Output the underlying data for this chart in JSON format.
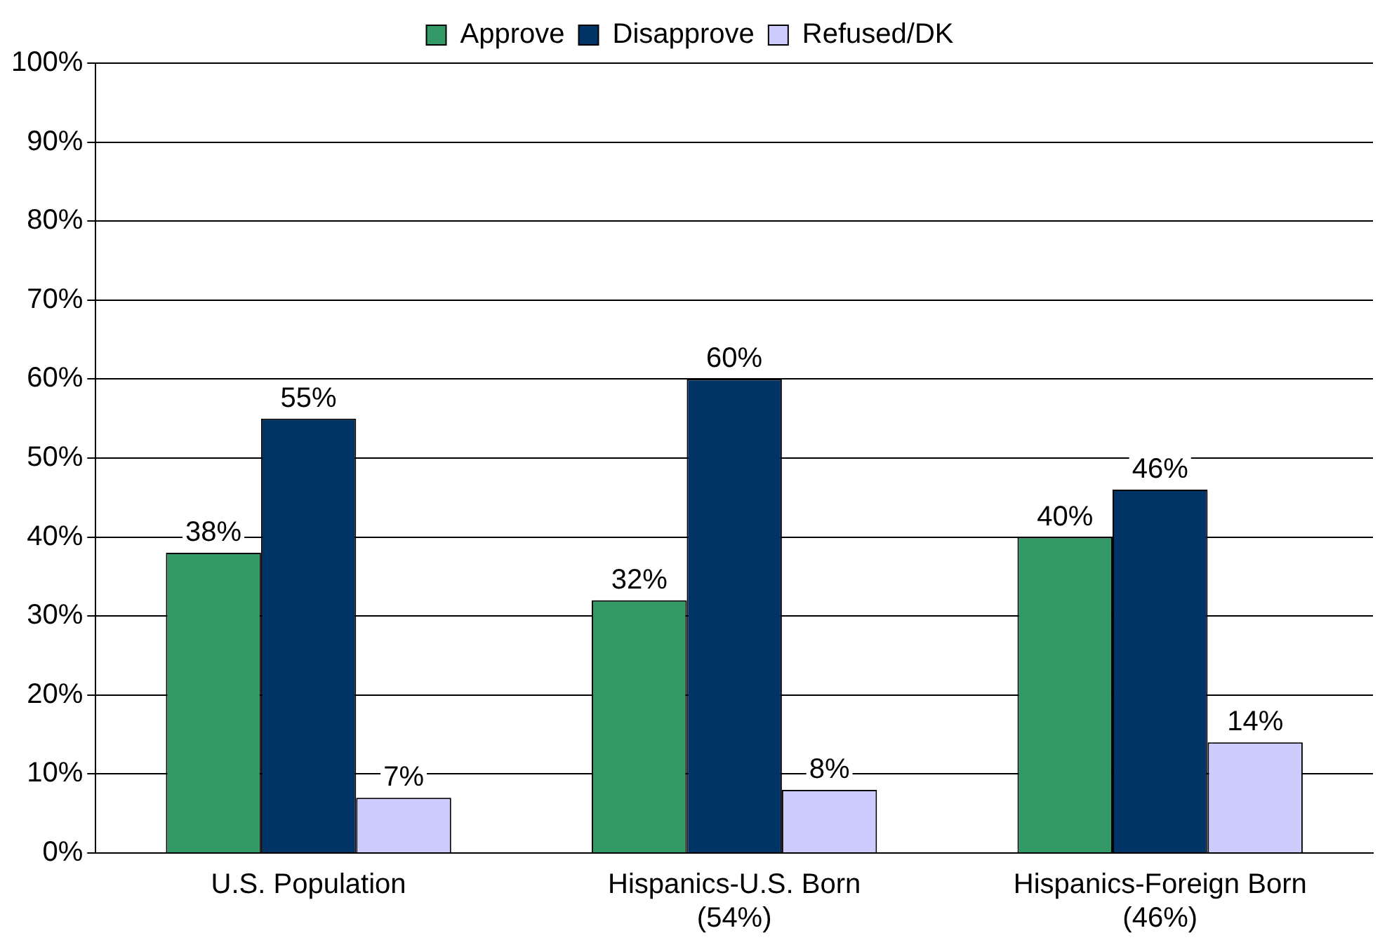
{
  "chart_data": {
    "type": "bar",
    "categories": [
      "U.S. Population",
      "Hispanics-U.S. Born\n(54%)",
      "Hispanics-Foreign Born\n(46%)"
    ],
    "series": [
      {
        "name": "Approve",
        "color": "#339966",
        "values": [
          38,
          32,
          40
        ],
        "value_labels": [
          "38%",
          "32%",
          "40%"
        ]
      },
      {
        "name": "Disapprove",
        "color": "#003366",
        "values": [
          55,
          60,
          46
        ],
        "value_labels": [
          "55%",
          "60%",
          "46%"
        ]
      },
      {
        "name": "Refused/DK",
        "color": "#ccccff",
        "values": [
          7,
          8,
          14
        ],
        "value_labels": [
          "7%",
          "8%",
          "14%"
        ]
      }
    ],
    "ylim": [
      0,
      100
    ],
    "yticks": [
      {
        "value": 0,
        "label": "0%"
      },
      {
        "value": 10,
        "label": "10%"
      },
      {
        "value": 20,
        "label": "20%"
      },
      {
        "value": 30,
        "label": "30%"
      },
      {
        "value": 40,
        "label": "40%"
      },
      {
        "value": 50,
        "label": "50%"
      },
      {
        "value": 60,
        "label": "60%"
      },
      {
        "value": 70,
        "label": "70%"
      },
      {
        "value": 80,
        "label": "80%"
      },
      {
        "value": 90,
        "label": "90%"
      },
      {
        "value": 100,
        "label": "100%"
      }
    ],
    "grid": "y",
    "legend": "top"
  }
}
